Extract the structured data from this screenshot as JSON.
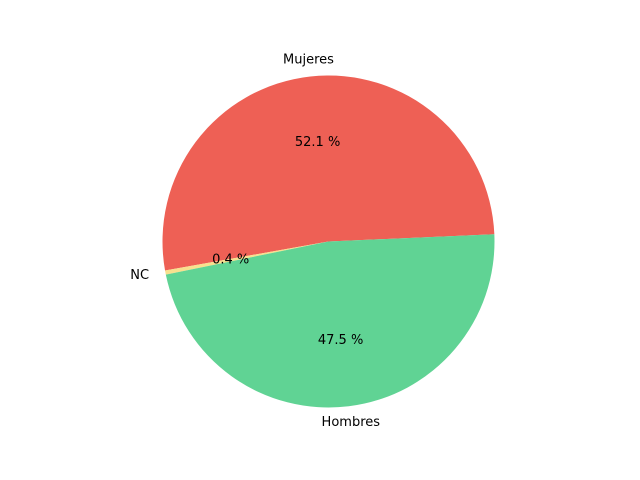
{
  "chart_data": {
    "type": "pie",
    "slices": [
      {
        "label": "Mujeres",
        "value": 52.1,
        "pct_label": "52.1 %",
        "color": "#ee6055"
      },
      {
        "label": "NC",
        "value": 0.4,
        "pct_label": "0.4 %",
        "color": "#f8e08e"
      },
      {
        "label": "Hombres",
        "value": 47.5,
        "pct_label": "47.5 %",
        "color": "#60d394"
      }
    ],
    "title": "",
    "legend": "none"
  }
}
